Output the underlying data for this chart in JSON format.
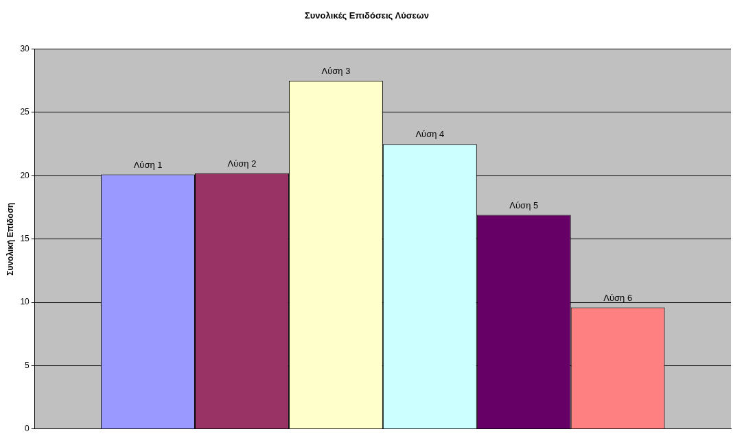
{
  "chart_data": {
    "type": "bar",
    "title": "Συνολικές Επιδόσεις Λύσεων",
    "ylabel": "Συνολική Επίδοση",
    "categories": [
      null
    ],
    "series": [
      {
        "name": "Λύση 1",
        "color": "#9999ff",
        "values": [
          20.1
        ]
      },
      {
        "name": "Λύση 2",
        "color": "#993366",
        "values": [
          20.2
        ]
      },
      {
        "name": "Λύση 3",
        "color": "#ffffcc",
        "values": [
          27.5
        ]
      },
      {
        "name": "Λύση 4",
        "color": "#ccffff",
        "values": [
          22.5
        ]
      },
      {
        "name": "Λύση 5",
        "color": "#660066",
        "values": [
          16.9
        ]
      },
      {
        "name": "Λύση 6",
        "color": "#ff8080",
        "values": [
          9.6
        ]
      }
    ],
    "ylim": [
      0,
      30
    ],
    "yticks": [
      0,
      5,
      10,
      15,
      20,
      25,
      30
    ],
    "grid": "y",
    "legend": false,
    "tick_labels": "y"
  }
}
